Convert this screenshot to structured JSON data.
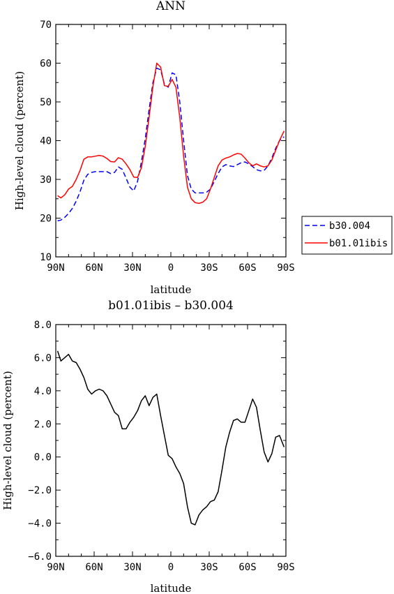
{
  "chart_data": [
    {
      "type": "line",
      "title": "ANN",
      "xlabel": "latitude",
      "ylabel": "High-level cloud (percent)",
      "xlim": [
        90,
        -90
      ],
      "ylim": [
        10,
        70
      ],
      "x_ticks": [
        90,
        60,
        30,
        0,
        -30,
        -60,
        -90
      ],
      "x_tick_labels": [
        "90N",
        "60N",
        "30N",
        "0",
        "30S",
        "60S",
        "90S"
      ],
      "y_ticks": [
        10,
        20,
        30,
        40,
        50,
        60,
        70
      ],
      "y_tick_labels": [
        "10",
        "20",
        "30",
        "40",
        "50",
        "60",
        "70"
      ],
      "legend_position": "outside-right",
      "series": [
        {
          "name": "b30.004",
          "color": "#0000ff",
          "style": "dashed",
          "x": [
            88.6,
            86,
            83,
            80,
            77,
            74,
            71,
            68,
            65,
            62,
            59,
            56,
            53,
            50,
            47,
            44,
            41,
            38,
            35,
            32,
            29,
            26,
            23,
            20,
            17,
            14,
            11,
            8,
            5,
            2,
            -1,
            -4,
            -7,
            -10,
            -13,
            -16,
            -19,
            -22,
            -25,
            -28,
            -31,
            -34,
            -37,
            -40,
            -43,
            -46,
            -49,
            -52,
            -55,
            -58,
            -61,
            -64,
            -67,
            -70,
            -73,
            -76,
            -79,
            -82,
            -85,
            -88.6
          ],
          "values": [
            19.3,
            19.5,
            20.2,
            21.2,
            22.5,
            24.4,
            26.8,
            29.8,
            31.3,
            31.8,
            32.0,
            32.0,
            32.0,
            32.0,
            31.5,
            31.8,
            33.2,
            32.6,
            30.3,
            28.0,
            27.0,
            29.5,
            34.5,
            40.5,
            48.0,
            55.0,
            58.7,
            58.3,
            54.5,
            53.8,
            57.5,
            57.0,
            50.0,
            40.0,
            31.0,
            27.5,
            26.5,
            26.5,
            26.5,
            26.7,
            27.5,
            29.5,
            31.5,
            33.2,
            33.8,
            33.5,
            33.3,
            33.8,
            34.3,
            34.5,
            34.0,
            33.3,
            32.5,
            32.2,
            32.3,
            33.5,
            35.5,
            38.0,
            40.0,
            41.0
          ]
        },
        {
          "name": "b01.01ibis",
          "color": "#ff0000",
          "style": "solid",
          "x": [
            88.6,
            86,
            83,
            80,
            77,
            74,
            71,
            68,
            65,
            62,
            59,
            56,
            53,
            50,
            47,
            44,
            41,
            38,
            35,
            32,
            29,
            26,
            23,
            20,
            17,
            14,
            11,
            8,
            5,
            2,
            -1,
            -4,
            -7,
            -10,
            -13,
            -16,
            -19,
            -22,
            -25,
            -28,
            -31,
            -34,
            -37,
            -40,
            -43,
            -46,
            -49,
            -52,
            -55,
            -58,
            -61,
            -64,
            -67,
            -70,
            -73,
            -76,
            -79,
            -82,
            -85,
            -88.6
          ],
          "values": [
            25.8,
            25.2,
            26.0,
            27.5,
            28.2,
            30.0,
            32.3,
            35.2,
            35.8,
            35.8,
            36.0,
            36.2,
            36.0,
            35.4,
            34.6,
            34.5,
            35.6,
            35.2,
            34.0,
            32.5,
            30.6,
            30.5,
            33.0,
            38.5,
            46.0,
            54.0,
            60.0,
            59.0,
            54.2,
            54.0,
            55.8,
            53.8,
            46.0,
            36.0,
            28.0,
            25.0,
            24.0,
            23.8,
            24.1,
            25.0,
            27.5,
            30.5,
            33.5,
            35.0,
            35.5,
            35.8,
            36.3,
            36.7,
            36.5,
            35.5,
            34.3,
            33.5,
            34.0,
            33.5,
            33.2,
            33.5,
            35.0,
            37.5,
            40.0,
            42.5
          ]
        }
      ]
    },
    {
      "type": "line",
      "title": "b01.01ibis – b30.004",
      "xlabel": "latitude",
      "ylabel": "High-level cloud (percent)",
      "xlim": [
        90,
        -90
      ],
      "ylim": [
        -6.0,
        8.0
      ],
      "x_ticks": [
        90,
        60,
        30,
        0,
        -30,
        -60,
        -90
      ],
      "x_tick_labels": [
        "90N",
        "60N",
        "30N",
        "0",
        "30S",
        "60S",
        "90S"
      ],
      "y_ticks": [
        -6,
        -4,
        -2,
        0,
        2,
        4,
        6,
        8
      ],
      "y_tick_labels": [
        "−6.0",
        "−4.0",
        "−2.0",
        "0.0",
        "2.0",
        "4.0",
        "6.0",
        "8.0"
      ],
      "series": [
        {
          "color": "#000000",
          "style": "solid",
          "x": [
            88.6,
            86,
            83,
            80,
            77,
            74,
            71,
            68,
            65,
            62,
            59,
            56,
            53,
            50,
            47,
            44,
            41,
            38,
            35,
            32,
            29,
            26,
            23,
            20,
            17,
            14,
            11,
            8,
            5,
            2,
            -1,
            -4,
            -7,
            -10,
            -13,
            -16,
            -19,
            -22,
            -25,
            -28,
            -31,
            -34,
            -37,
            -40,
            -43,
            -46,
            -49,
            -52,
            -55,
            -58,
            -61,
            -64,
            -67,
            -70,
            -73,
            -76,
            -79,
            -82,
            -85,
            -88.6
          ],
          "values": [
            6.4,
            5.8,
            6.0,
            6.2,
            5.8,
            5.7,
            5.3,
            4.8,
            4.1,
            3.8,
            4.0,
            4.1,
            4.0,
            3.7,
            3.2,
            2.7,
            2.5,
            1.7,
            1.7,
            2.1,
            2.4,
            2.8,
            3.4,
            3.7,
            3.1,
            3.6,
            3.8,
            2.5,
            1.3,
            0.1,
            -0.1,
            -0.6,
            -1.0,
            -1.6,
            -3.0,
            -4.0,
            -4.1,
            -3.5,
            -3.2,
            -3.0,
            -2.7,
            -2.6,
            -2.1,
            -0.8,
            0.6,
            1.5,
            2.2,
            2.3,
            2.1,
            2.1,
            2.8,
            3.5,
            3.0,
            1.6,
            0.3,
            -0.3,
            0.2,
            1.2,
            1.3,
            0.6
          ]
        }
      ]
    }
  ]
}
